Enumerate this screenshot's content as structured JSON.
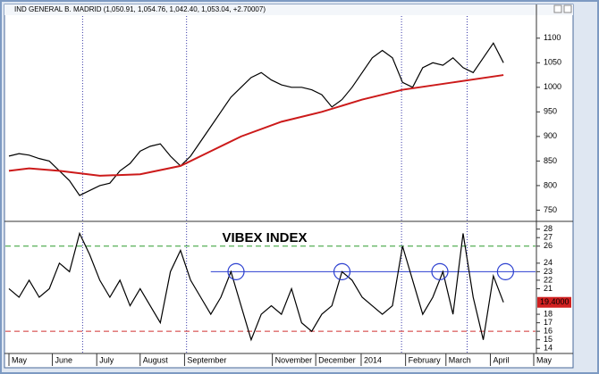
{
  "chart_data": [
    {
      "type": "line",
      "title": "IND GENERAL B. MADRID (1,050.91, 1,054.76, 1,042.40, 1,053.04, +2.70007)",
      "x": [
        0,
        1,
        2,
        3,
        4,
        5,
        6,
        7,
        8,
        9,
        10,
        11,
        12,
        13,
        14,
        15,
        16,
        17,
        18,
        19,
        20,
        21,
        22,
        23,
        24,
        25,
        26,
        27,
        28,
        29,
        30,
        31,
        32,
        33,
        34,
        35,
        36,
        37,
        38,
        39,
        40,
        41,
        42,
        43,
        44,
        45,
        46,
        47,
        48,
        49
      ],
      "series": [
        {
          "color": "#000000",
          "values": [
            860,
            865,
            862,
            855,
            850,
            830,
            810,
            780,
            790,
            800,
            805,
            830,
            845,
            870,
            880,
            885,
            860,
            840,
            860,
            890,
            920,
            950,
            980,
            1000,
            1020,
            1030,
            1015,
            1005,
            1000,
            1000,
            995,
            985,
            960,
            975,
            1000,
            1030,
            1060,
            1075,
            1060,
            1010,
            1000,
            1040,
            1050,
            1045,
            1060,
            1040,
            1030,
            1060,
            1090,
            1050
          ]
        },
        {
          "color": "#cc1a1a",
          "x": [
            0,
            2,
            5,
            9,
            13,
            17,
            20,
            23,
            27,
            31,
            35,
            39,
            44,
            49
          ],
          "values": [
            830,
            835,
            830,
            820,
            823,
            840,
            870,
            900,
            930,
            950,
            975,
            995,
            1010,
            1025
          ]
        }
      ],
      "xlim": [
        0,
        52
      ],
      "ylim": [
        729,
        1145
      ],
      "yticks": [
        750,
        800,
        850,
        900,
        950,
        1000,
        1050,
        1100
      ],
      "vlines": [
        7.3,
        17.6,
        38.9,
        45.4
      ]
    },
    {
      "type": "line",
      "annotation": "VIBEX INDEX",
      "x": [
        0,
        1,
        2,
        3,
        4,
        5,
        6,
        7,
        8,
        9,
        10,
        11,
        12,
        13,
        14,
        15,
        16,
        17,
        18,
        19,
        20,
        21,
        22,
        23,
        24,
        25,
        26,
        27,
        28,
        29,
        30,
        31,
        32,
        33,
        34,
        35,
        36,
        37,
        38,
        39,
        40,
        41,
        42,
        43,
        44,
        45,
        46,
        47,
        48,
        49
      ],
      "series": [
        {
          "color": "#000000",
          "values": [
            21,
            20,
            22,
            20,
            21,
            24,
            23,
            27.5,
            25,
            22,
            20,
            22,
            19,
            21,
            19,
            17,
            23,
            25.5,
            22,
            20,
            18,
            20,
            23,
            19,
            15,
            18,
            19,
            18,
            21,
            17,
            16,
            18,
            19,
            23,
            22,
            20,
            19,
            18,
            19,
            26,
            22,
            18,
            20,
            23,
            18,
            27.5,
            20,
            15,
            22.5,
            19.4
          ]
        }
      ],
      "last_label": "19.4000",
      "xlim": [
        0,
        52
      ],
      "ylim": [
        13.5,
        28.7
      ],
      "yticks": [
        14,
        15,
        16,
        17,
        18,
        21,
        22,
        23,
        24,
        26,
        27,
        28
      ],
      "xticks": [
        {
          "value": 0,
          "label": "May"
        },
        {
          "value": 4.3,
          "label": "June"
        },
        {
          "value": 8.7,
          "label": "July"
        },
        {
          "value": 13,
          "label": "August"
        },
        {
          "value": 17.4,
          "label": "September"
        },
        {
          "value": 26.1,
          "label": "November"
        },
        {
          "value": 30.4,
          "label": "December"
        },
        {
          "value": 34.9,
          "label": "2014"
        },
        {
          "value": 39.3,
          "label": "February"
        },
        {
          "value": 43.3,
          "label": "March"
        },
        {
          "value": 47.7,
          "label": "April"
        },
        {
          "value": 52,
          "label": "May"
        }
      ],
      "hlines": [
        {
          "value": 26,
          "color": "#2e9b2e",
          "dash": true
        },
        {
          "value": 23,
          "color": "#2b3fd0",
          "dash": false,
          "xstart": 20
        },
        {
          "value": 16,
          "color": "#d03030",
          "dash": true
        }
      ],
      "markers": {
        "x": [
          22.5,
          33,
          42.7,
          49.2
        ],
        "y": 23,
        "color": "#2b3fd0"
      },
      "vlines": [
        7.3,
        17.6,
        38.9,
        45.4
      ]
    }
  ]
}
